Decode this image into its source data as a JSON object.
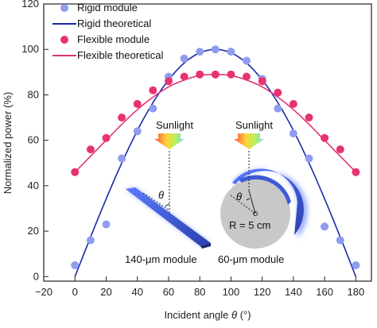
{
  "chart_data": {
    "type": "scatter",
    "xlabel_prefix": "Incident angle ",
    "xlabel_symbol": "θ",
    "xlabel_suffix": " (°)",
    "ylabel": "Normalized power (%)",
    "xlim": [
      -20,
      190
    ],
    "ylim": [
      -2,
      120
    ],
    "xticks": [
      -20,
      0,
      20,
      40,
      60,
      80,
      100,
      120,
      140,
      160,
      180
    ],
    "yticks": [
      0,
      20,
      40,
      60,
      80,
      100,
      120
    ],
    "grid": false,
    "legend_position": "top-left",
    "colors": {
      "rigid_points": "#8f9cf0",
      "rigid_line": "#1a2aa8",
      "flexible_points": "#e8336e",
      "flexible_line": "#e0357a"
    },
    "series": [
      {
        "name": "Rigid module",
        "kind": "points",
        "x": [
          0,
          10,
          20,
          30,
          40,
          50,
          60,
          70,
          80,
          90,
          100,
          110,
          120,
          130,
          140,
          150,
          160,
          170,
          180
        ],
        "y": [
          5,
          16,
          23,
          52,
          64,
          74,
          88,
          96,
          99,
          100,
          99,
          95,
          87,
          74,
          63,
          52,
          22,
          16,
          5
        ]
      },
      {
        "name": "Rigid theoretical",
        "kind": "line",
        "x": [
          0,
          10,
          20,
          30,
          40,
          50,
          60,
          70,
          80,
          90,
          100,
          110,
          120,
          130,
          140,
          150,
          160,
          170,
          180
        ],
        "y": [
          0,
          17.4,
          34.2,
          50,
          64.3,
          76.6,
          86.6,
          94,
          98.5,
          100,
          98.5,
          94,
          86.6,
          76.6,
          64.3,
          50,
          34.2,
          17.4,
          0
        ]
      },
      {
        "name": "Flexible module",
        "kind": "points",
        "x": [
          0,
          10,
          20,
          30,
          40,
          50,
          60,
          70,
          80,
          90,
          100,
          110,
          120,
          130,
          140,
          150,
          160,
          170,
          180
        ],
        "y": [
          46,
          56,
          61,
          70,
          76,
          82,
          86,
          88,
          89,
          89,
          89,
          88,
          86,
          81,
          76,
          70,
          61,
          56,
          46
        ]
      },
      {
        "name": "Flexible theoretical",
        "kind": "line",
        "x": [
          0,
          10,
          20,
          30,
          40,
          50,
          60,
          70,
          80,
          90,
          100,
          110,
          120,
          130,
          140,
          150,
          160,
          170,
          180
        ],
        "y": [
          46,
          53,
          60,
          67,
          73.5,
          79,
          83.5,
          86.5,
          88.5,
          89,
          88.5,
          86.5,
          83.5,
          79,
          73.5,
          67,
          60,
          53,
          46
        ]
      }
    ],
    "annotations": {
      "sunlight_label": "Sunlight",
      "theta_symbol": "θ",
      "rigid_module_label": "140-μm module",
      "flexible_module_label": "60-μm module",
      "radius_label": "R = 5 cm"
    }
  }
}
